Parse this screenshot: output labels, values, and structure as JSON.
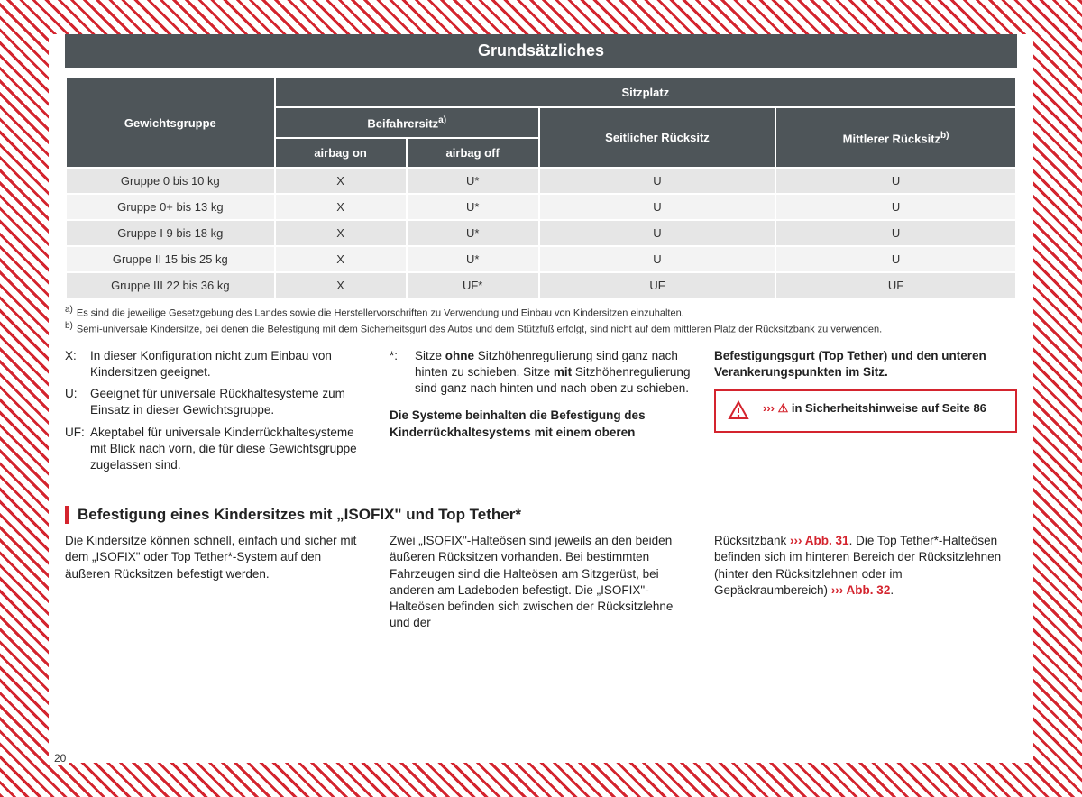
{
  "header": {
    "title": "Grundsätzliches"
  },
  "table": {
    "col_group": "Gewichtsgruppe",
    "col_seat": "Sitzplatz",
    "col_passenger": "Beifahrersitz",
    "sup_a": "a)",
    "col_airbag_on": "airbag on",
    "col_airbag_off": "airbag off",
    "col_side_rear": "Seitlicher Rücksitz",
    "col_mid_rear": "Mittlerer Rücksitz",
    "sup_b": "b)",
    "rows": [
      {
        "g": "Gruppe 0 bis 10 kg",
        "a": "X",
        "b": "U*",
        "c": "U",
        "d": "U"
      },
      {
        "g": "Gruppe 0+ bis 13 kg",
        "a": "X",
        "b": "U*",
        "c": "U",
        "d": "U"
      },
      {
        "g": "Gruppe I 9 bis 18 kg",
        "a": "X",
        "b": "U*",
        "c": "U",
        "d": "U"
      },
      {
        "g": "Gruppe II 15 bis 25 kg",
        "a": "X",
        "b": "U*",
        "c": "U",
        "d": "U"
      },
      {
        "g": "Gruppe III 22 bis 36 kg",
        "a": "X",
        "b": "UF*",
        "c": "UF",
        "d": "UF"
      }
    ]
  },
  "footnotes": {
    "a_sup": "a)",
    "a": "Es sind die jeweilige Gesetzgebung des Landes sowie die Herstellervorschriften zu Verwendung und Einbau von Kindersitzen einzuhalten.",
    "b_sup": "b)",
    "b": "Semi-universale Kindersitze, bei denen die Befestigung mit dem Sicherheitsgurt des Autos und dem Stützfuß erfolgt, sind nicht auf dem mittleren Platz der Rücksitzbank zu verwenden."
  },
  "defs": {
    "x_k": "X:",
    "x_v": "In dieser Konfiguration nicht zum Einbau von Kindersitzen geeignet.",
    "u_k": "U:",
    "u_v": "Geeignet für universale Rückhaltesysteme zum Einsatz in dieser Gewichtsgruppe.",
    "uf_k": "UF:",
    "uf_v": "Akeptabel für universale Kinderrückhaltesysteme mit Blick nach vorn, die für diese Gewichtsgruppe zugelassen sind."
  },
  "middle": {
    "star_k": "*:",
    "star_pre": "Sitze ",
    "star_b1": "ohne",
    "star_mid": " Sitzhöhenregulierung sind ganz nach hinten zu schieben. Sitze ",
    "star_b2": "mit",
    "star_post": " Sitzhöhenregulierung sind ganz nach hinten und nach oben zu schieben.",
    "bold_para": "Die Systeme beinhalten die Befestigung des Kinderrückhaltesystems mit einem oberen"
  },
  "right": {
    "bold_top": "Befestigungsgurt (Top Tether) und den unteren Verankerungspunkten im Sitz.",
    "box_chevron": "›››",
    "box_icon_label": "⚠",
    "box_text": " in Sicherheitshinweise auf Seite 86"
  },
  "section2": {
    "title": "Befestigung eines Kindersitzes mit „ISOFIX\" und Top Tether*",
    "c1": "Die Kindersitze können schnell, einfach und sicher mit dem „ISOFIX\" oder Top Tether*-System auf den äußeren Rücksitzen befestigt werden.",
    "c2": "Zwei „ISOFIX\"-Halteösen sind jeweils an den beiden äußeren Rücksitzen vorhanden. Bei bestimmten Fahrzeugen sind die Halteösen am Sitzgerüst, bei anderen am Ladeboden befestigt. Die „ISOFIX\"-Halteösen befinden sich zwischen der Rücksitzlehne und der",
    "c3_pre": "Rücksitzbank ",
    "c3_ref1_chev": "›››",
    "c3_ref1": " Abb. 31",
    "c3_mid": ". Die Top Tether*-Halteösen befinden sich im hinteren Bereich der Rücksitzlehnen (hinter den Rücksitzlehnen oder im Gepäckraumbereich) ",
    "c3_ref2_chev": "›››",
    "c3_ref2": " Abb. 32",
    "c3_end": "."
  },
  "page_number": "20"
}
